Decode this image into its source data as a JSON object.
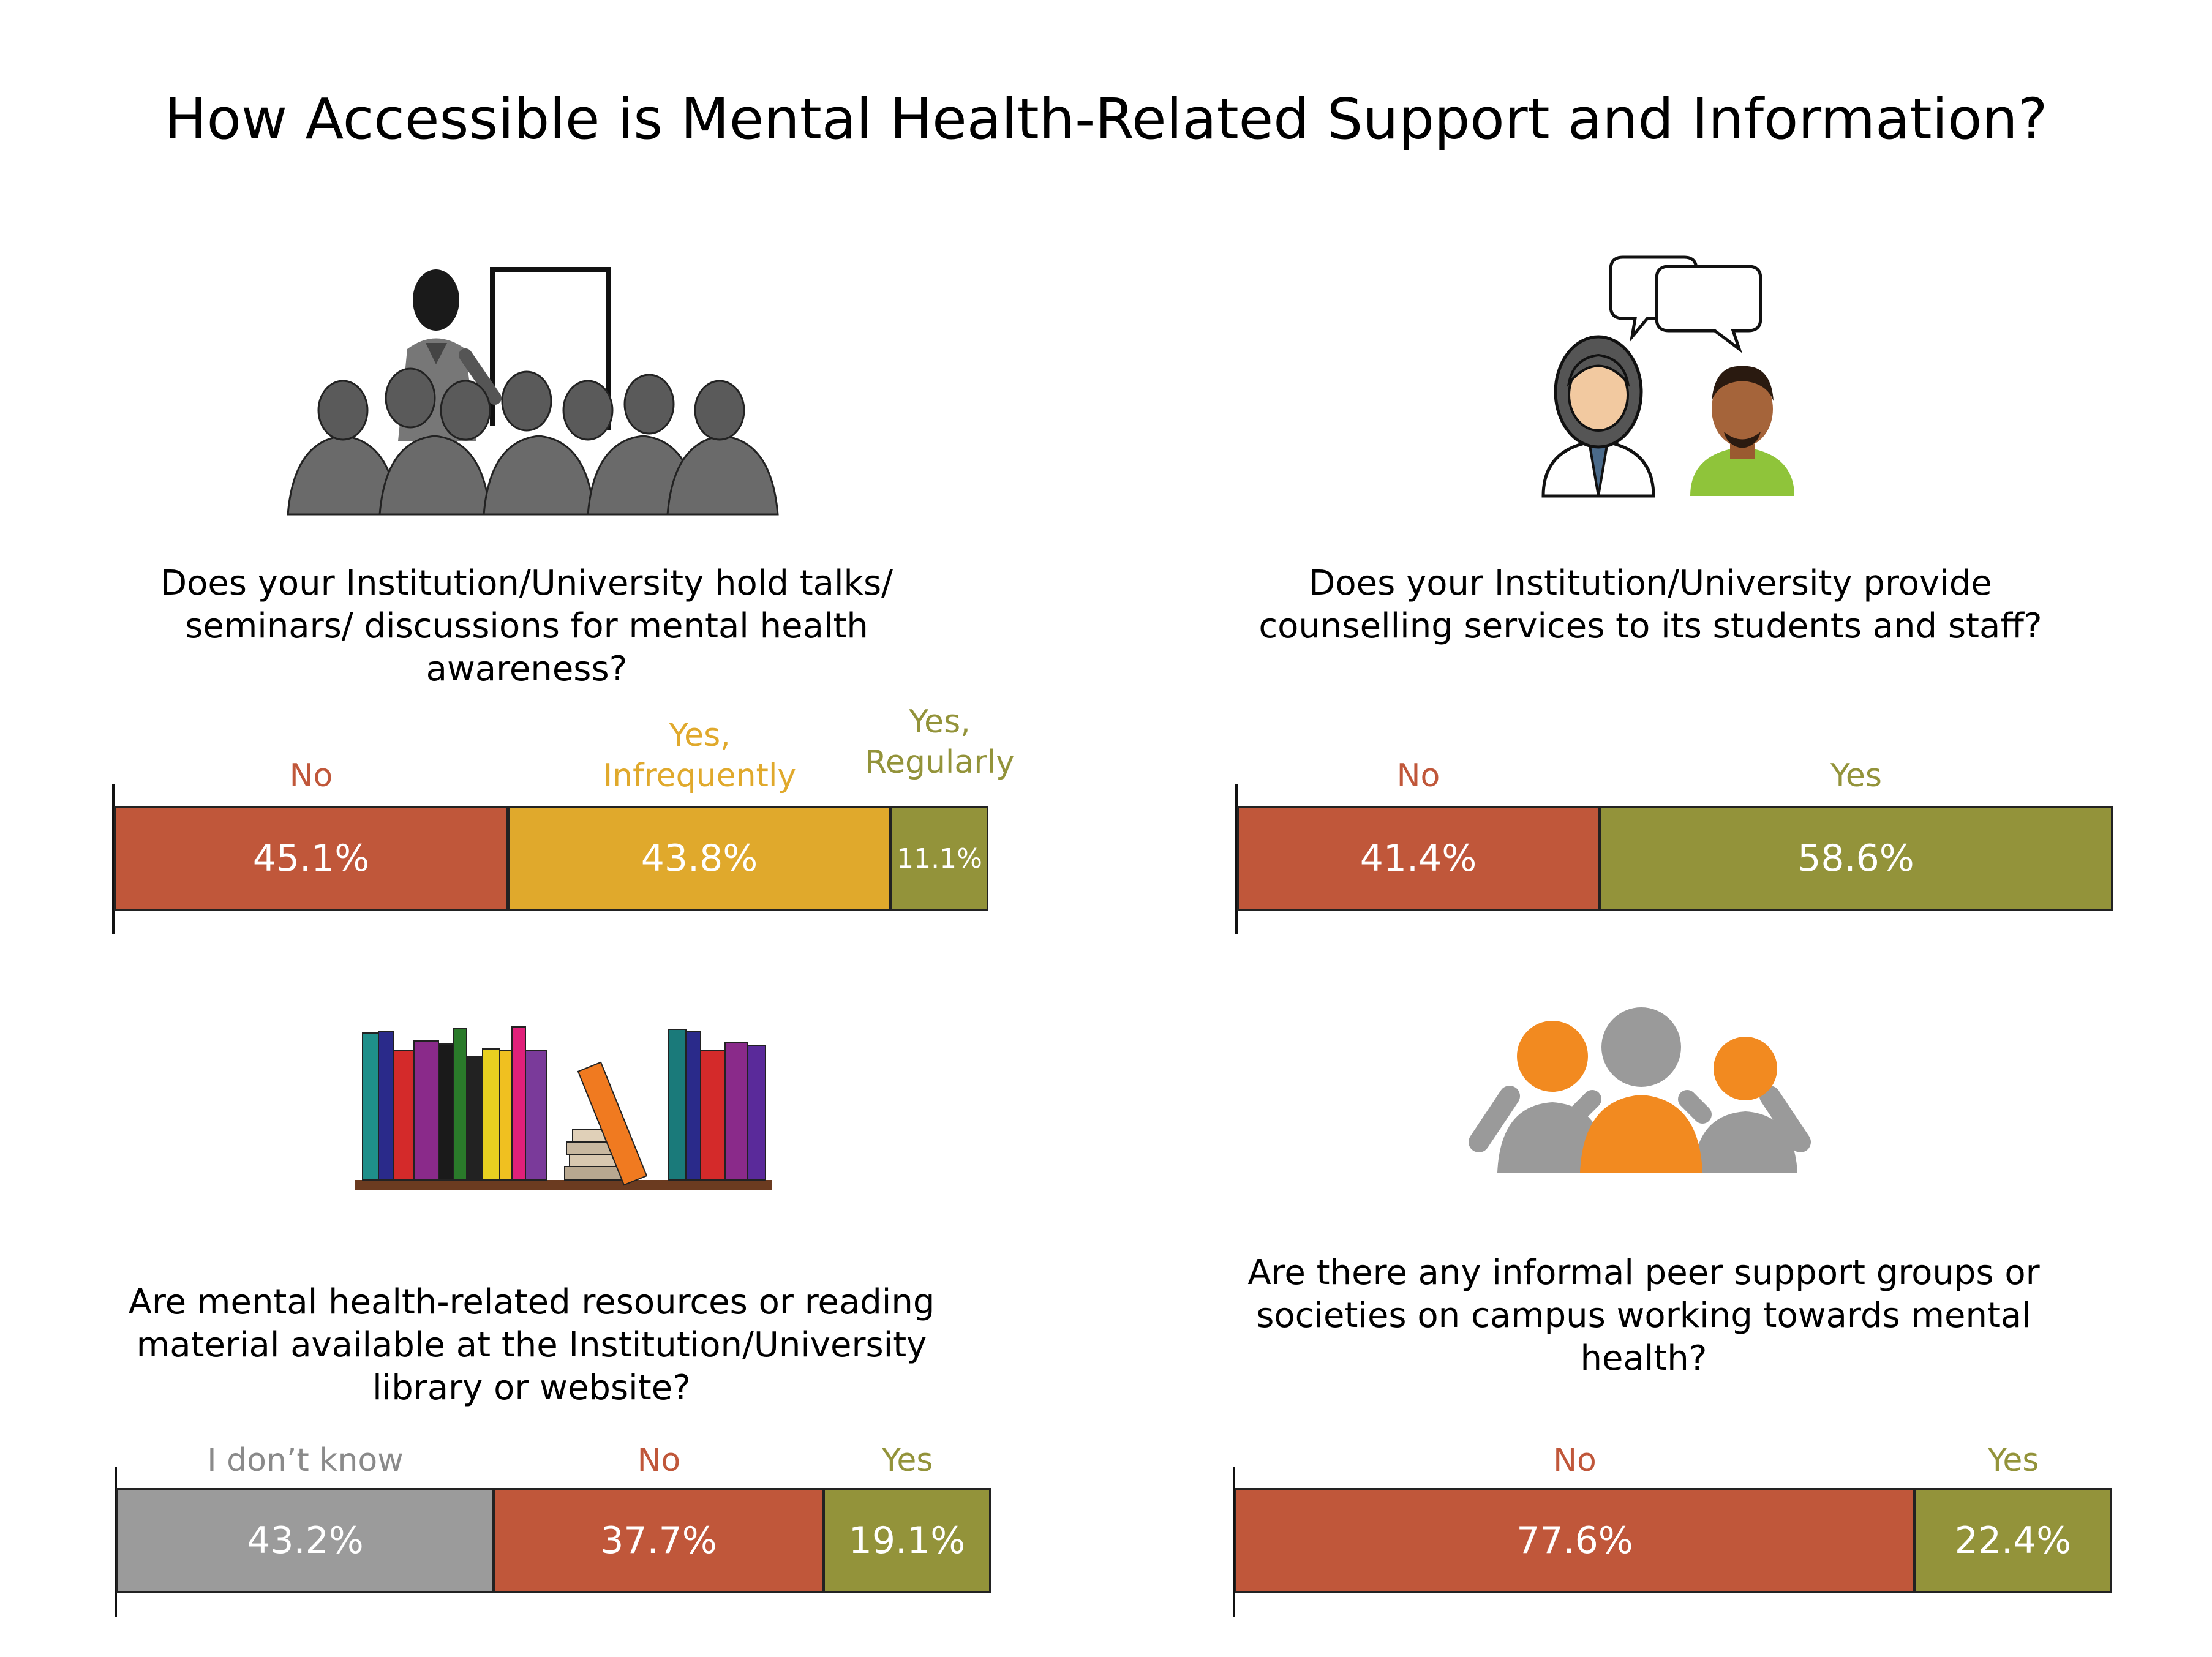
{
  "title": "How Accessible is Mental Health-Related Support and Information?",
  "colors": {
    "no": "#c0573a",
    "yes_infrequently": "#e0a92c",
    "yes": "#93933a",
    "dont_know": "#9b9b9b"
  },
  "chart_data": [
    {
      "type": "bar",
      "orientation": "horizontal-stacked",
      "question_lines": [
        "Does your Institution/University hold talks/",
        "seminars/ discussions for mental health",
        "awareness?"
      ],
      "categories": [
        {
          "label_lines": [
            "No"
          ],
          "value": 45.1,
          "display": "45.1%",
          "color": "#c0573a",
          "label_color": "#c0573a"
        },
        {
          "label_lines": [
            "Yes,",
            "Infrequently"
          ],
          "value": 43.8,
          "display": "43.8%",
          "color": "#e0a92c",
          "label_color": "#e0a92c"
        },
        {
          "label_lines": [
            "Yes,",
            "Regularly"
          ],
          "value": 11.1,
          "display": "11.1%",
          "color": "#93933a",
          "label_color": "#93933a"
        }
      ],
      "icon": "presentation-audience-icon"
    },
    {
      "type": "bar",
      "orientation": "horizontal-stacked",
      "question_lines": [
        "Does your Institution/University provide",
        "counselling services to its students and staff?"
      ],
      "categories": [
        {
          "label_lines": [
            "No"
          ],
          "value": 41.4,
          "display": "41.4%",
          "color": "#c0573a",
          "label_color": "#c0573a"
        },
        {
          "label_lines": [
            "Yes"
          ],
          "value": 58.6,
          "display": "58.6%",
          "color": "#93933a",
          "label_color": "#93933a"
        }
      ],
      "icon": "counselling-conversation-icon"
    },
    {
      "type": "bar",
      "orientation": "horizontal-stacked",
      "question_lines": [
        "Are mental health-related resources or reading",
        "material available at the Institution/University",
        "library or website?"
      ],
      "categories": [
        {
          "label_lines": [
            "I don’t know"
          ],
          "value": 43.2,
          "display": "43.2%",
          "color": "#9b9b9b",
          "label_color": "#8a8a8a"
        },
        {
          "label_lines": [
            "No"
          ],
          "value": 37.7,
          "display": "37.7%",
          "color": "#c0573a",
          "label_color": "#c0573a"
        },
        {
          "label_lines": [
            "Yes"
          ],
          "value": 19.1,
          "display": "19.1%",
          "color": "#93933a",
          "label_color": "#93933a"
        }
      ],
      "icon": "bookshelf-icon"
    },
    {
      "type": "bar",
      "orientation": "horizontal-stacked",
      "question_lines": [
        "Are there any informal peer support groups or",
        "societies on campus working towards mental",
        "health?"
      ],
      "categories": [
        {
          "label_lines": [
            "No"
          ],
          "value": 77.6,
          "display": "77.6%",
          "color": "#c0573a",
          "label_color": "#c0573a"
        },
        {
          "label_lines": [
            "Yes"
          ],
          "value": 22.4,
          "display": "22.4%",
          "color": "#93933a",
          "label_color": "#93933a"
        }
      ],
      "icon": "peer-group-icon"
    }
  ]
}
